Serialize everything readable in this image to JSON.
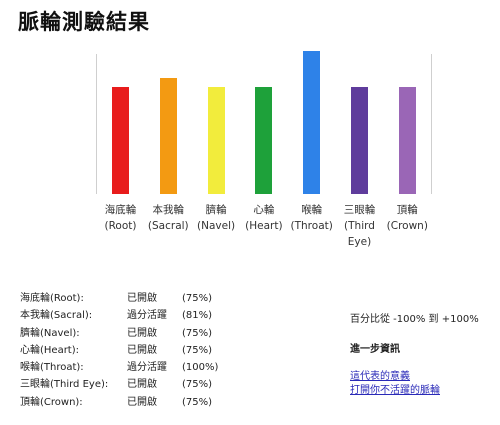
{
  "page": {
    "title": "脈輪測驗結果"
  },
  "chart_data": {
    "type": "bar",
    "categories": [
      "海底輪 (Root)",
      "本我輪 (Sacral)",
      "臍輪 (Navel)",
      "心輪 (Heart)",
      "喉輪 (Throat)",
      "三眼輪 (Third Eye)",
      "頂輪 (Crown)"
    ],
    "label_lines": [
      [
        "海底輪",
        "(Root)"
      ],
      [
        "本我輪",
        "(Sacral)"
      ],
      [
        "臍輪",
        "(Navel)"
      ],
      [
        "心輪",
        "(Heart)"
      ],
      [
        "喉輪",
        "(Throat)"
      ],
      [
        "三眼輪",
        "(Third",
        "Eye)"
      ],
      [
        "頂輪",
        "(Crown)"
      ]
    ],
    "values": [
      75,
      81,
      75,
      75,
      100,
      75,
      75
    ],
    "colors": [
      "#e81c1c",
      "#f39a12",
      "#f2ec3c",
      "#1ea13a",
      "#2e82e8",
      "#5f3c9c",
      "#9a66b6"
    ],
    "ylim": [
      0,
      100
    ],
    "title": "",
    "xlabel": "",
    "ylabel": ""
  },
  "summary": {
    "rows": [
      {
        "name": "海底輪(Root):",
        "status": "已開啟",
        "percent": "(75%)"
      },
      {
        "name": "本我輪(Sacral):",
        "status": "過分活躍",
        "percent": "(81%)"
      },
      {
        "name": "臍輪(Navel):",
        "status": "已開啟",
        "percent": "(75%)"
      },
      {
        "name": "心輪(Heart):",
        "status": "已開啟",
        "percent": "(75%)"
      },
      {
        "name": "喉輪(Throat):",
        "status": "過分活躍",
        "percent": "(100%)"
      },
      {
        "name": "三眼輪(Third Eye):",
        "status": "已開啟",
        "percent": "(75%)"
      },
      {
        "name": "頂輪(Crown):",
        "status": "已開啟",
        "percent": "(75%)"
      }
    ]
  },
  "info": {
    "range": "百分比從 -100% 到 +100%",
    "heading": "進一步資訊",
    "links": [
      "這代表的意義",
      "打開你不活躍的脈輪"
    ]
  }
}
